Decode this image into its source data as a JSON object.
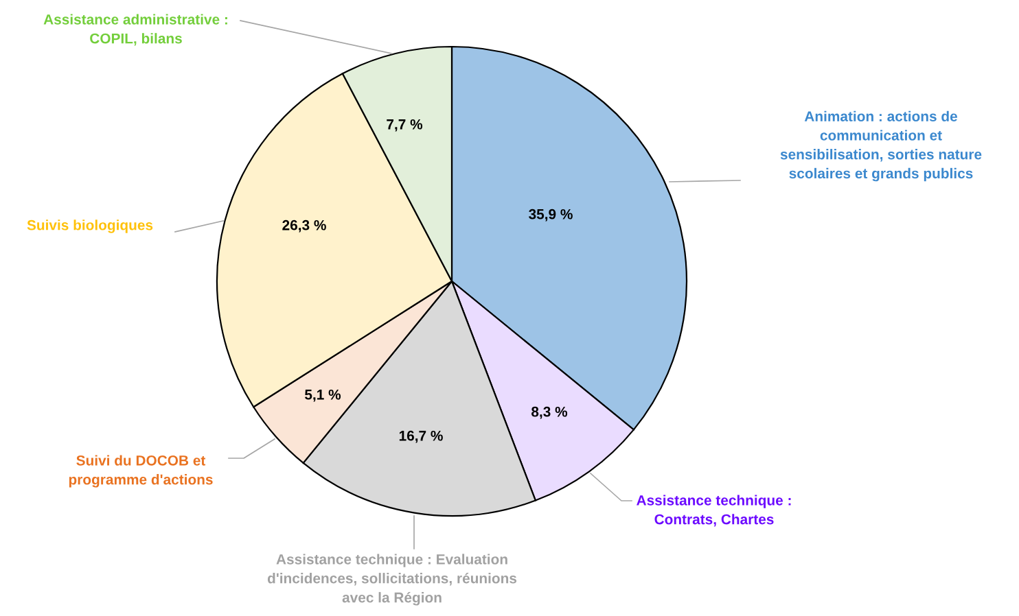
{
  "chart_data": {
    "type": "pie",
    "categories": [
      "Animation : actions de\ncommunication et\nsensibilisation, sorties nature\nscolaires et grands publics",
      "Assistance technique :\nContrats, Chartes",
      "Assistance technique : Evaluation\nd'incidences, sollicitations, réunions\navec la Région",
      "Suivi du DOCOB et\nprogramme d'actions",
      "Suivis biologiques",
      "Assistance administrative :\nCOPIL, bilans"
    ],
    "values": [
      35.9,
      8.3,
      16.7,
      5.1,
      26.3,
      7.7
    ],
    "colors": [
      "#9dc3e6",
      "#eadcff",
      "#d9d9d9",
      "#fbe5d6",
      "#fff2cc",
      "#e2efda"
    ],
    "value_labels": [
      "35,9 %",
      "8,3 %",
      "16,7 %",
      "5,1 %",
      "26,3 %",
      "7,7 %"
    ],
    "legend": false
  }
}
